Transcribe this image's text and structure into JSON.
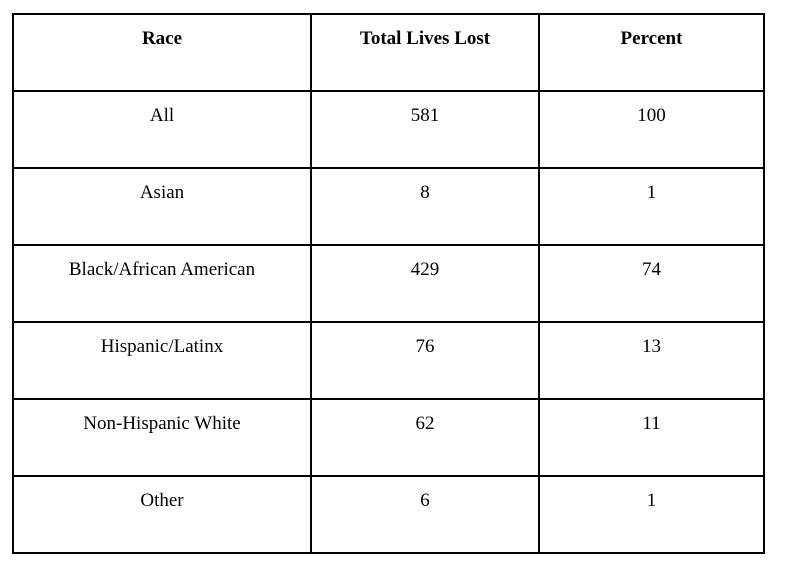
{
  "table": {
    "background_color": "#ffffff",
    "border_color": "#000000",
    "text_color": "#000000",
    "columns": [
      {
        "label": "Race"
      },
      {
        "label": "Total Lives Lost"
      },
      {
        "label": "Percent"
      }
    ],
    "rows": [
      {
        "race": "All",
        "total_lives_lost": "581",
        "percent": "100"
      },
      {
        "race": "Asian",
        "total_lives_lost": "8",
        "percent": "1"
      },
      {
        "race": "Black/African American",
        "total_lives_lost": "429",
        "percent": "74"
      },
      {
        "race": "Hispanic/Latinx",
        "total_lives_lost": "76",
        "percent": "13"
      },
      {
        "race": "Non-Hispanic White",
        "total_lives_lost": "62",
        "percent": "11"
      },
      {
        "race": "Other",
        "total_lives_lost": "6",
        "percent": "1"
      }
    ]
  }
}
